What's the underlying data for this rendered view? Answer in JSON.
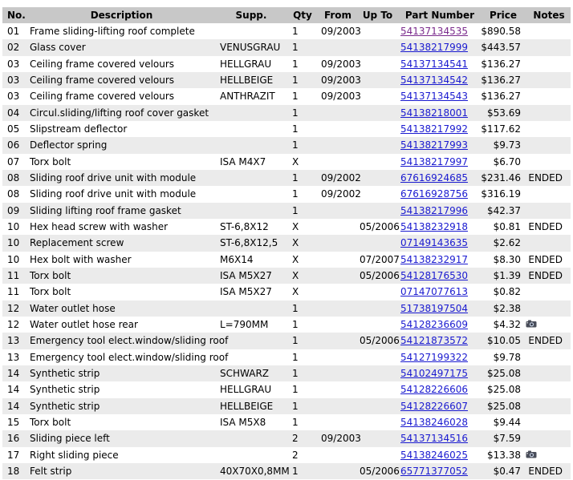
{
  "headers": {
    "no": "No.",
    "description": "Description",
    "supp": "Supp.",
    "qty": "Qty",
    "from": "From",
    "upto": "Up To",
    "part_number": "Part Number",
    "price": "Price",
    "notes": "Notes"
  },
  "rows": [
    {
      "no": "01",
      "description": "Frame sliding-lifting roof complete",
      "supp": "",
      "qty": "1",
      "from": "09/2003",
      "upto": "",
      "part": "54137134535",
      "visited": true,
      "price": "$890.58",
      "notes": ""
    },
    {
      "no": "02",
      "description": "Glass cover",
      "supp": "VENUSGRAU",
      "qty": "1",
      "from": "",
      "upto": "",
      "part": "54138217999",
      "price": "$443.57",
      "notes": ""
    },
    {
      "no": "03",
      "description": "Ceiling frame covered velours",
      "supp": "HELLGRAU",
      "qty": "1",
      "from": "09/2003",
      "upto": "",
      "part": "54137134541",
      "price": "$136.27",
      "notes": ""
    },
    {
      "no": "03",
      "description": "Ceiling frame covered velours",
      "supp": "HELLBEIGE",
      "qty": "1",
      "from": "09/2003",
      "upto": "",
      "part": "54137134542",
      "price": "$136.27",
      "notes": ""
    },
    {
      "no": "03",
      "description": "Ceiling frame covered velours",
      "supp": "ANTHRAZIT",
      "qty": "1",
      "from": "09/2003",
      "upto": "",
      "part": "54137134543",
      "price": "$136.27",
      "notes": ""
    },
    {
      "no": "04",
      "description": "Circul.sliding/lifting roof cover gasket",
      "supp": "",
      "qty": "1",
      "from": "",
      "upto": "",
      "part": "54138218001",
      "price": "$53.69",
      "notes": ""
    },
    {
      "no": "05",
      "description": "Slipstream deflector",
      "supp": "",
      "qty": "1",
      "from": "",
      "upto": "",
      "part": "54138217992",
      "price": "$117.62",
      "notes": ""
    },
    {
      "no": "06",
      "description": "Deflector spring",
      "supp": "",
      "qty": "1",
      "from": "",
      "upto": "",
      "part": "54138217993",
      "price": "$9.73",
      "notes": ""
    },
    {
      "no": "07",
      "description": "Torx bolt",
      "supp": "ISA M4X7",
      "qty": "X",
      "from": "",
      "upto": "",
      "part": "54138217997",
      "price": "$6.70",
      "notes": ""
    },
    {
      "no": "08",
      "description": "Sliding roof drive unit with module",
      "supp": "",
      "qty": "1",
      "from": "09/2002",
      "upto": "",
      "part": "67616924685",
      "price": "$231.46",
      "notes": "ENDED"
    },
    {
      "no": "08",
      "description": "Sliding roof drive unit with module",
      "supp": "",
      "qty": "1",
      "from": "09/2002",
      "upto": "",
      "part": "67616928756",
      "price": "$316.19",
      "notes": ""
    },
    {
      "no": "09",
      "description": "Sliding lifting roof frame gasket",
      "supp": "",
      "qty": "1",
      "from": "",
      "upto": "",
      "part": "54138217996",
      "price": "$42.37",
      "notes": ""
    },
    {
      "no": "10",
      "description": "Hex head screw with washer",
      "supp": "ST-6,8X12",
      "qty": "X",
      "from": "",
      "upto": "05/2006",
      "part": "54138232918",
      "price": "$0.81",
      "notes": "ENDED"
    },
    {
      "no": "10",
      "description": "Replacement screw",
      "supp": "ST-6,8X12,5",
      "qty": "X",
      "from": "",
      "upto": "",
      "part": "07149143635",
      "price": "$2.62",
      "notes": ""
    },
    {
      "no": "10",
      "description": "Hex bolt with washer",
      "supp": "M6X14",
      "qty": "X",
      "from": "",
      "upto": "07/2007",
      "part": "54138232917",
      "price": "$8.30",
      "notes": "ENDED"
    },
    {
      "no": "11",
      "description": "Torx bolt",
      "supp": "ISA M5X27",
      "qty": "X",
      "from": "",
      "upto": "05/2006",
      "part": "54128176530",
      "price": "$1.39",
      "notes": "ENDED"
    },
    {
      "no": "11",
      "description": "Torx bolt",
      "supp": "ISA M5X27",
      "qty": "X",
      "from": "",
      "upto": "",
      "part": "07147077613",
      "price": "$0.82",
      "notes": ""
    },
    {
      "no": "12",
      "description": "Water outlet hose",
      "supp": "",
      "qty": "1",
      "from": "",
      "upto": "",
      "part": "51738197504",
      "price": "$2.38",
      "notes": ""
    },
    {
      "no": "12",
      "description": "Water outlet hose rear",
      "supp": "L=790MM",
      "qty": "1",
      "from": "",
      "upto": "",
      "part": "54128236609",
      "price": "$4.32",
      "notes": "",
      "camera": true
    },
    {
      "no": "13",
      "description": "Emergency tool elect.window/sliding roof",
      "supp": "",
      "qty": "1",
      "from": "",
      "upto": "05/2006",
      "part": "54121873572",
      "price": "$10.05",
      "notes": "ENDED"
    },
    {
      "no": "13",
      "description": "Emergency tool elect.window/sliding roof",
      "supp": "",
      "qty": "1",
      "from": "",
      "upto": "",
      "part": "54127199322",
      "price": "$9.78",
      "notes": ""
    },
    {
      "no": "14",
      "description": "Synthetic strip",
      "supp": "SCHWARZ",
      "qty": "1",
      "from": "",
      "upto": "",
      "part": "54102497175",
      "price": "$25.08",
      "notes": ""
    },
    {
      "no": "14",
      "description": "Synthetic strip",
      "supp": "HELLGRAU",
      "qty": "1",
      "from": "",
      "upto": "",
      "part": "54128226606",
      "price": "$25.08",
      "notes": ""
    },
    {
      "no": "14",
      "description": "Synthetic strip",
      "supp": "HELLBEIGE",
      "qty": "1",
      "from": "",
      "upto": "",
      "part": "54128226607",
      "price": "$25.08",
      "notes": ""
    },
    {
      "no": "15",
      "description": "Torx bolt",
      "supp": "ISA M5X8",
      "qty": "1",
      "from": "",
      "upto": "",
      "part": "54138246028",
      "price": "$9.44",
      "notes": ""
    },
    {
      "no": "16",
      "description": "Sliding piece left",
      "supp": "",
      "qty": "2",
      "from": "09/2003",
      "upto": "",
      "part": "54137134516",
      "price": "$7.59",
      "notes": ""
    },
    {
      "no": "17",
      "description": "Right sliding piece",
      "supp": "",
      "qty": "2",
      "from": "",
      "upto": "",
      "part": "54138246025",
      "price": "$13.38",
      "notes": "",
      "camera": true
    },
    {
      "no": "18",
      "description": "Felt strip",
      "supp": "40X70X0,8MM",
      "qty": "1",
      "from": "",
      "upto": "05/2006",
      "part": "65771377052",
      "price": "$0.47",
      "notes": "ENDED"
    }
  ],
  "icons": {
    "camera": "camera-icon"
  },
  "colors": {
    "header_bg": "#c8c8c8",
    "row_alt": "#ebebeb",
    "link": "#1a1ad0",
    "link_visited": "#7a2a8c"
  }
}
